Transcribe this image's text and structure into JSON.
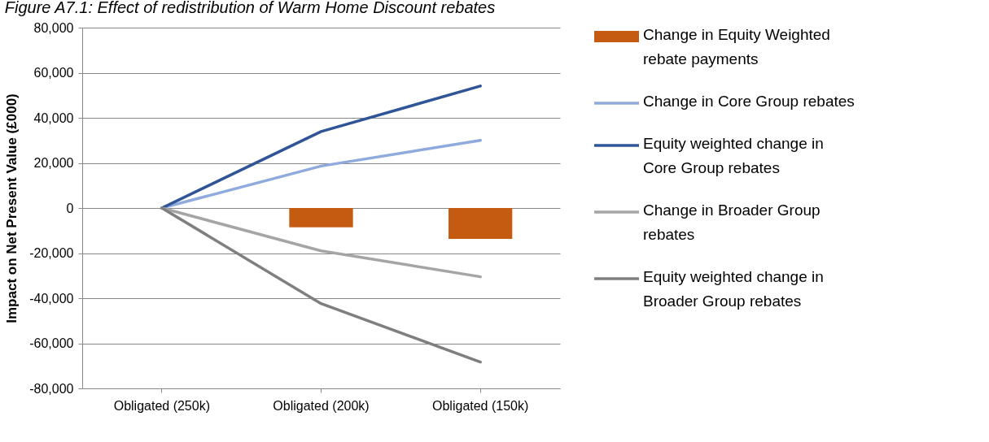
{
  "chart_data": {
    "type": "line",
    "title": "Figure A7.1: Effect of redistribution of Warm Home Discount rebates",
    "ylabel": "Impact on Net Present Value (£000)",
    "categories": [
      "Obligated (250k)",
      "Obligated (200k)",
      "Obligated (150k)"
    ],
    "series": [
      {
        "name": "Change in Equity Weighted rebate payments",
        "type": "bar",
        "color": "#c55a11",
        "values": [
          null,
          -8600,
          -13700
        ]
      },
      {
        "name": "Change in Core Group rebates",
        "color": "#8faadc",
        "values": [
          0,
          18600,
          30000
        ]
      },
      {
        "name": "Equity weighted change in Core Group rebates",
        "color": "#2f5597",
        "values": [
          0,
          33900,
          54100
        ]
      },
      {
        "name": "Change in Broader Group rebates",
        "color": "#a5a5a5",
        "values": [
          0,
          -19000,
          -30500
        ]
      },
      {
        "name": "Equity weighted change in Broader Group rebates",
        "color": "#7f7f7f",
        "values": [
          0,
          -42400,
          -68300
        ]
      }
    ],
    "ylim": [
      -80000,
      80000
    ],
    "yticks": [
      {
        "value": -80000,
        "label": "-80,000"
      },
      {
        "value": -60000,
        "label": "-60,000"
      },
      {
        "value": -40000,
        "label": "-40,000"
      },
      {
        "value": -20000,
        "label": "-20,000"
      },
      0,
      {
        "value": 20000,
        "label": "20,000"
      },
      {
        "value": 40000,
        "label": "40,000"
      },
      {
        "value": 60000,
        "label": "60,000"
      },
      {
        "value": 80000,
        "label": "80,000"
      }
    ],
    "grid": "y",
    "legend": "right"
  }
}
